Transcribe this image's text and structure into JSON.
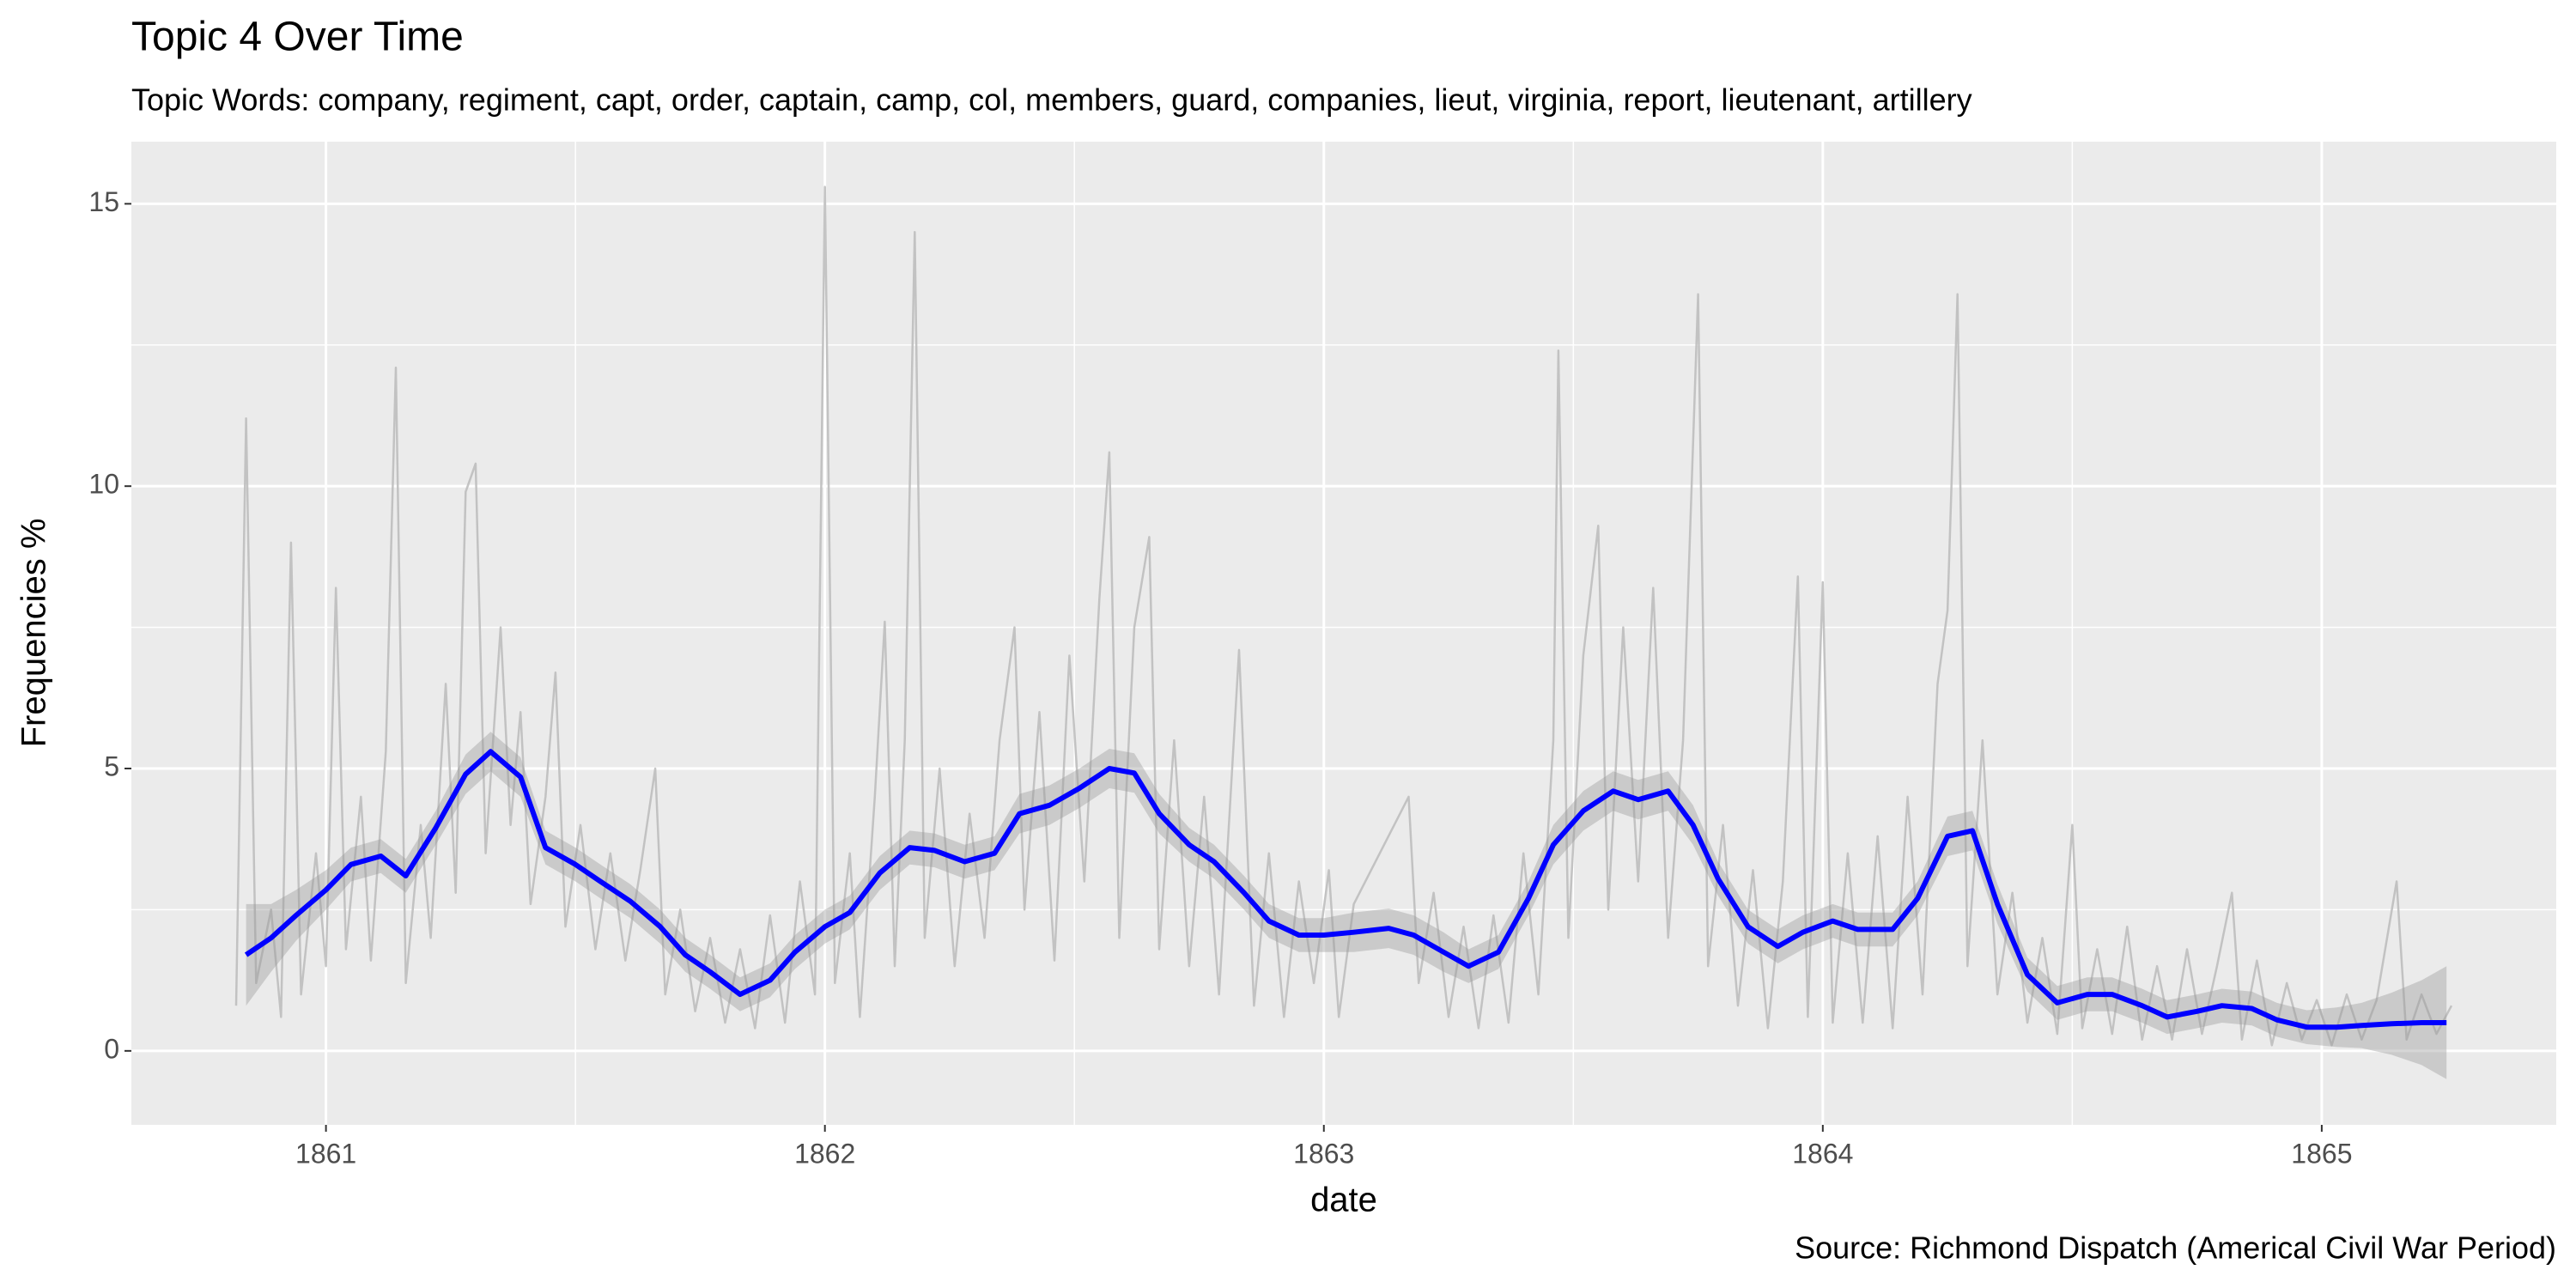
{
  "chart_data": {
    "type": "line",
    "title": "Topic 4 Over Time",
    "subtitle": "Topic Words: company, regiment, capt, order, captain, camp, col, members, guard, companies, lieut, virginia, report, lieutenant, artillery",
    "x_label": "date",
    "y_label": "Frequencies %",
    "caption": "Source: Richmond Dispatch (Americal Civil War Period)",
    "xlim": [
      1860.61,
      1865.47
    ],
    "xticks": [
      1861,
      1862,
      1863,
      1864,
      1865
    ],
    "ylim": [
      -1.31,
      16.1
    ],
    "yticks": [
      0,
      5,
      10,
      15
    ],
    "grid": true,
    "minor_grid": true,
    "series": [
      {
        "color": "#bebebe",
        "x": [
          1860.82,
          1860.84,
          1860.86,
          1860.89,
          1860.91,
          1860.93,
          1860.95,
          1860.98,
          1861.0,
          1861.02,
          1861.04,
          1861.07,
          1861.09,
          1861.12,
          1861.14,
          1861.16,
          1861.19,
          1861.21,
          1861.24,
          1861.26,
          1861.28,
          1861.3,
          1861.32,
          1861.35,
          1861.37,
          1861.39,
          1861.41,
          1861.44,
          1861.46,
          1861.48,
          1861.51,
          1861.54,
          1861.57,
          1861.6,
          1861.63,
          1861.66,
          1861.68,
          1861.71,
          1861.74,
          1861.77,
          1861.8,
          1861.83,
          1861.86,
          1861.89,
          1861.92,
          1861.95,
          1861.98,
          1862.0,
          1862.02,
          1862.05,
          1862.07,
          1862.1,
          1862.12,
          1862.14,
          1862.16,
          1862.18,
          1862.2,
          1862.23,
          1862.26,
          1862.29,
          1862.32,
          1862.35,
          1862.38,
          1862.4,
          1862.43,
          1862.46,
          1862.49,
          1862.52,
          1862.55,
          1862.57,
          1862.59,
          1862.62,
          1862.65,
          1862.67,
          1862.7,
          1862.73,
          1862.76,
          1862.79,
          1862.83,
          1862.86,
          1862.89,
          1862.92,
          1862.95,
          1862.98,
          1863.01,
          1863.03,
          1863.06,
          1863.17,
          1863.19,
          1863.22,
          1863.25,
          1863.28,
          1863.31,
          1863.34,
          1863.37,
          1863.4,
          1863.43,
          1863.46,
          1863.47,
          1863.49,
          1863.52,
          1863.55,
          1863.57,
          1863.6,
          1863.63,
          1863.66,
          1863.69,
          1863.72,
          1863.75,
          1863.77,
          1863.8,
          1863.83,
          1863.86,
          1863.89,
          1863.92,
          1863.95,
          1863.97,
          1864.0,
          1864.02,
          1864.05,
          1864.08,
          1864.11,
          1864.14,
          1864.17,
          1864.2,
          1864.23,
          1864.25,
          1864.27,
          1864.29,
          1864.32,
          1864.35,
          1864.38,
          1864.41,
          1864.44,
          1864.47,
          1864.5,
          1864.52,
          1864.55,
          1864.58,
          1864.61,
          1864.64,
          1864.67,
          1864.7,
          1864.73,
          1864.76,
          1864.79,
          1864.82,
          1864.84,
          1864.87,
          1864.9,
          1864.93,
          1864.96,
          1864.99,
          1865.02,
          1865.05,
          1865.08,
          1865.11,
          1865.15,
          1865.17,
          1865.2,
          1865.23,
          1865.26
        ],
        "values": [
          0.8,
          11.2,
          1.2,
          2.5,
          0.6,
          9.0,
          1.0,
          3.5,
          1.5,
          8.2,
          1.8,
          4.5,
          1.6,
          5.3,
          12.1,
          1.2,
          4.0,
          2.0,
          6.5,
          2.8,
          9.9,
          10.4,
          3.5,
          7.5,
          4.0,
          6.0,
          2.6,
          4.5,
          6.7,
          2.2,
          4.0,
          1.8,
          3.5,
          1.6,
          3.2,
          5.0,
          1.0,
          2.5,
          0.7,
          2.0,
          0.5,
          1.8,
          0.4,
          2.4,
          0.5,
          3.0,
          1.0,
          15.3,
          1.2,
          3.5,
          0.6,
          4.5,
          7.6,
          1.5,
          5.5,
          14.5,
          2.0,
          5.0,
          1.5,
          4.2,
          2.0,
          5.5,
          7.5,
          2.5,
          6.0,
          1.6,
          7.0,
          3.0,
          8.0,
          10.6,
          2.0,
          7.5,
          9.1,
          1.8,
          5.5,
          1.5,
          4.5,
          1.0,
          7.1,
          0.8,
          3.5,
          0.6,
          3.0,
          1.2,
          3.2,
          0.6,
          2.6,
          4.5,
          1.2,
          2.8,
          0.6,
          2.2,
          0.4,
          2.4,
          0.5,
          3.5,
          1.0,
          5.5,
          12.4,
          2.0,
          7.0,
          9.3,
          2.5,
          7.5,
          3.0,
          8.2,
          2.0,
          5.5,
          13.4,
          1.5,
          4.0,
          0.8,
          3.2,
          0.4,
          3.0,
          8.4,
          0.6,
          8.3,
          0.5,
          3.5,
          0.5,
          3.8,
          0.4,
          4.5,
          1.0,
          6.5,
          7.8,
          13.4,
          1.5,
          5.5,
          1.0,
          2.8,
          0.5,
          2.0,
          0.3,
          4.0,
          0.4,
          1.8,
          0.3,
          2.2,
          0.2,
          1.5,
          0.2,
          1.8,
          0.3,
          1.5,
          2.8,
          0.2,
          1.6,
          0.1,
          1.2,
          0.2,
          0.9,
          0.1,
          1.0,
          0.2,
          0.9,
          3.0,
          0.2,
          1.0,
          0.3,
          0.8
        ]
      },
      {
        "color": "#0000ff",
        "band_color": "#999999",
        "x": [
          1860.84,
          1860.89,
          1860.94,
          1861.0,
          1861.05,
          1861.11,
          1861.16,
          1861.22,
          1861.28,
          1861.33,
          1861.39,
          1861.44,
          1861.5,
          1861.55,
          1861.61,
          1861.67,
          1861.72,
          1861.77,
          1861.83,
          1861.89,
          1861.94,
          1862.0,
          1862.05,
          1862.11,
          1862.17,
          1862.22,
          1862.28,
          1862.34,
          1862.39,
          1862.45,
          1862.51,
          1862.57,
          1862.62,
          1862.67,
          1862.73,
          1862.78,
          1862.84,
          1862.89,
          1862.95,
          1863.0,
          1863.06,
          1863.13,
          1863.18,
          1863.24,
          1863.29,
          1863.35,
          1863.41,
          1863.46,
          1863.52,
          1863.58,
          1863.63,
          1863.69,
          1863.74,
          1863.79,
          1863.85,
          1863.91,
          1863.96,
          1864.02,
          1864.07,
          1864.14,
          1864.19,
          1864.25,
          1864.3,
          1864.35,
          1864.41,
          1864.47,
          1864.53,
          1864.58,
          1864.64,
          1864.69,
          1864.75,
          1864.8,
          1864.86,
          1864.91,
          1864.97,
          1865.03,
          1865.08,
          1865.14,
          1865.2,
          1865.25
        ],
        "values": [
          1.7,
          2.0,
          2.4,
          2.85,
          3.3,
          3.45,
          3.1,
          3.95,
          4.9,
          5.3,
          4.85,
          3.6,
          3.3,
          3.0,
          2.65,
          2.2,
          1.7,
          1.4,
          1.0,
          1.25,
          1.75,
          2.2,
          2.45,
          3.15,
          3.6,
          3.55,
          3.35,
          3.5,
          4.2,
          4.35,
          4.65,
          5.0,
          4.92,
          4.2,
          3.65,
          3.35,
          2.8,
          2.3,
          2.05,
          2.05,
          2.1,
          2.17,
          2.05,
          1.75,
          1.5,
          1.75,
          2.7,
          3.65,
          4.25,
          4.6,
          4.45,
          4.6,
          4.0,
          3.05,
          2.2,
          1.85,
          2.1,
          2.3,
          2.15,
          2.15,
          2.7,
          3.8,
          3.9,
          2.6,
          1.35,
          0.85,
          1.0,
          1.0,
          0.8,
          0.6,
          0.7,
          0.8,
          0.75,
          0.55,
          0.42,
          0.42,
          0.45,
          0.48,
          0.5,
          0.5
        ],
        "error": [
          0.9,
          0.6,
          0.45,
          0.35,
          0.3,
          0.3,
          0.3,
          0.3,
          0.35,
          0.35,
          0.35,
          0.3,
          0.3,
          0.3,
          0.3,
          0.3,
          0.3,
          0.3,
          0.3,
          0.3,
          0.3,
          0.3,
          0.3,
          0.3,
          0.3,
          0.3,
          0.3,
          0.3,
          0.35,
          0.35,
          0.35,
          0.35,
          0.35,
          0.35,
          0.3,
          0.3,
          0.3,
          0.3,
          0.3,
          0.3,
          0.35,
          0.35,
          0.35,
          0.35,
          0.3,
          0.3,
          0.3,
          0.35,
          0.35,
          0.35,
          0.35,
          0.35,
          0.35,
          0.3,
          0.3,
          0.3,
          0.3,
          0.3,
          0.3,
          0.3,
          0.3,
          0.35,
          0.35,
          0.35,
          0.3,
          0.3,
          0.3,
          0.3,
          0.3,
          0.3,
          0.3,
          0.3,
          0.3,
          0.3,
          0.3,
          0.35,
          0.4,
          0.55,
          0.75,
          1.0
        ]
      }
    ]
  }
}
